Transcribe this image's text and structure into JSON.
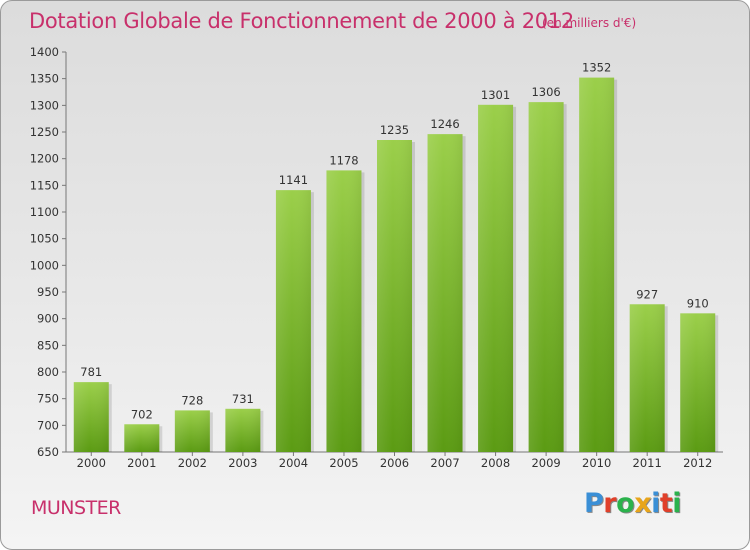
{
  "title": "Dotation Globale de Fonctionnement de 2000 à 2012",
  "subtitle": "(en milliers d'€)",
  "city": "MUNSTER",
  "logo_text": "Proxiti",
  "colors": {
    "title": "#c8306b",
    "bar_top": "#9bcf4a",
    "bar_bottom": "#5b9b13",
    "logo": [
      "#3a8fd6",
      "#e0402a",
      "#2bb24c",
      "#e8a51b",
      "#3a8fd6",
      "#e0402a",
      "#2bb24c"
    ]
  },
  "chart_data": {
    "type": "bar",
    "categories": [
      "2000",
      "2001",
      "2002",
      "2003",
      "2004",
      "2005",
      "2006",
      "2007",
      "2008",
      "2009",
      "2010",
      "2011",
      "2012"
    ],
    "values": [
      781,
      702,
      728,
      731,
      1141,
      1178,
      1235,
      1246,
      1301,
      1306,
      1352,
      927,
      910
    ],
    "ylim": [
      650,
      1400
    ],
    "yticks": [
      650,
      700,
      750,
      800,
      850,
      900,
      950,
      1000,
      1050,
      1100,
      1150,
      1200,
      1250,
      1300,
      1350,
      1400
    ],
    "grid": false
  }
}
